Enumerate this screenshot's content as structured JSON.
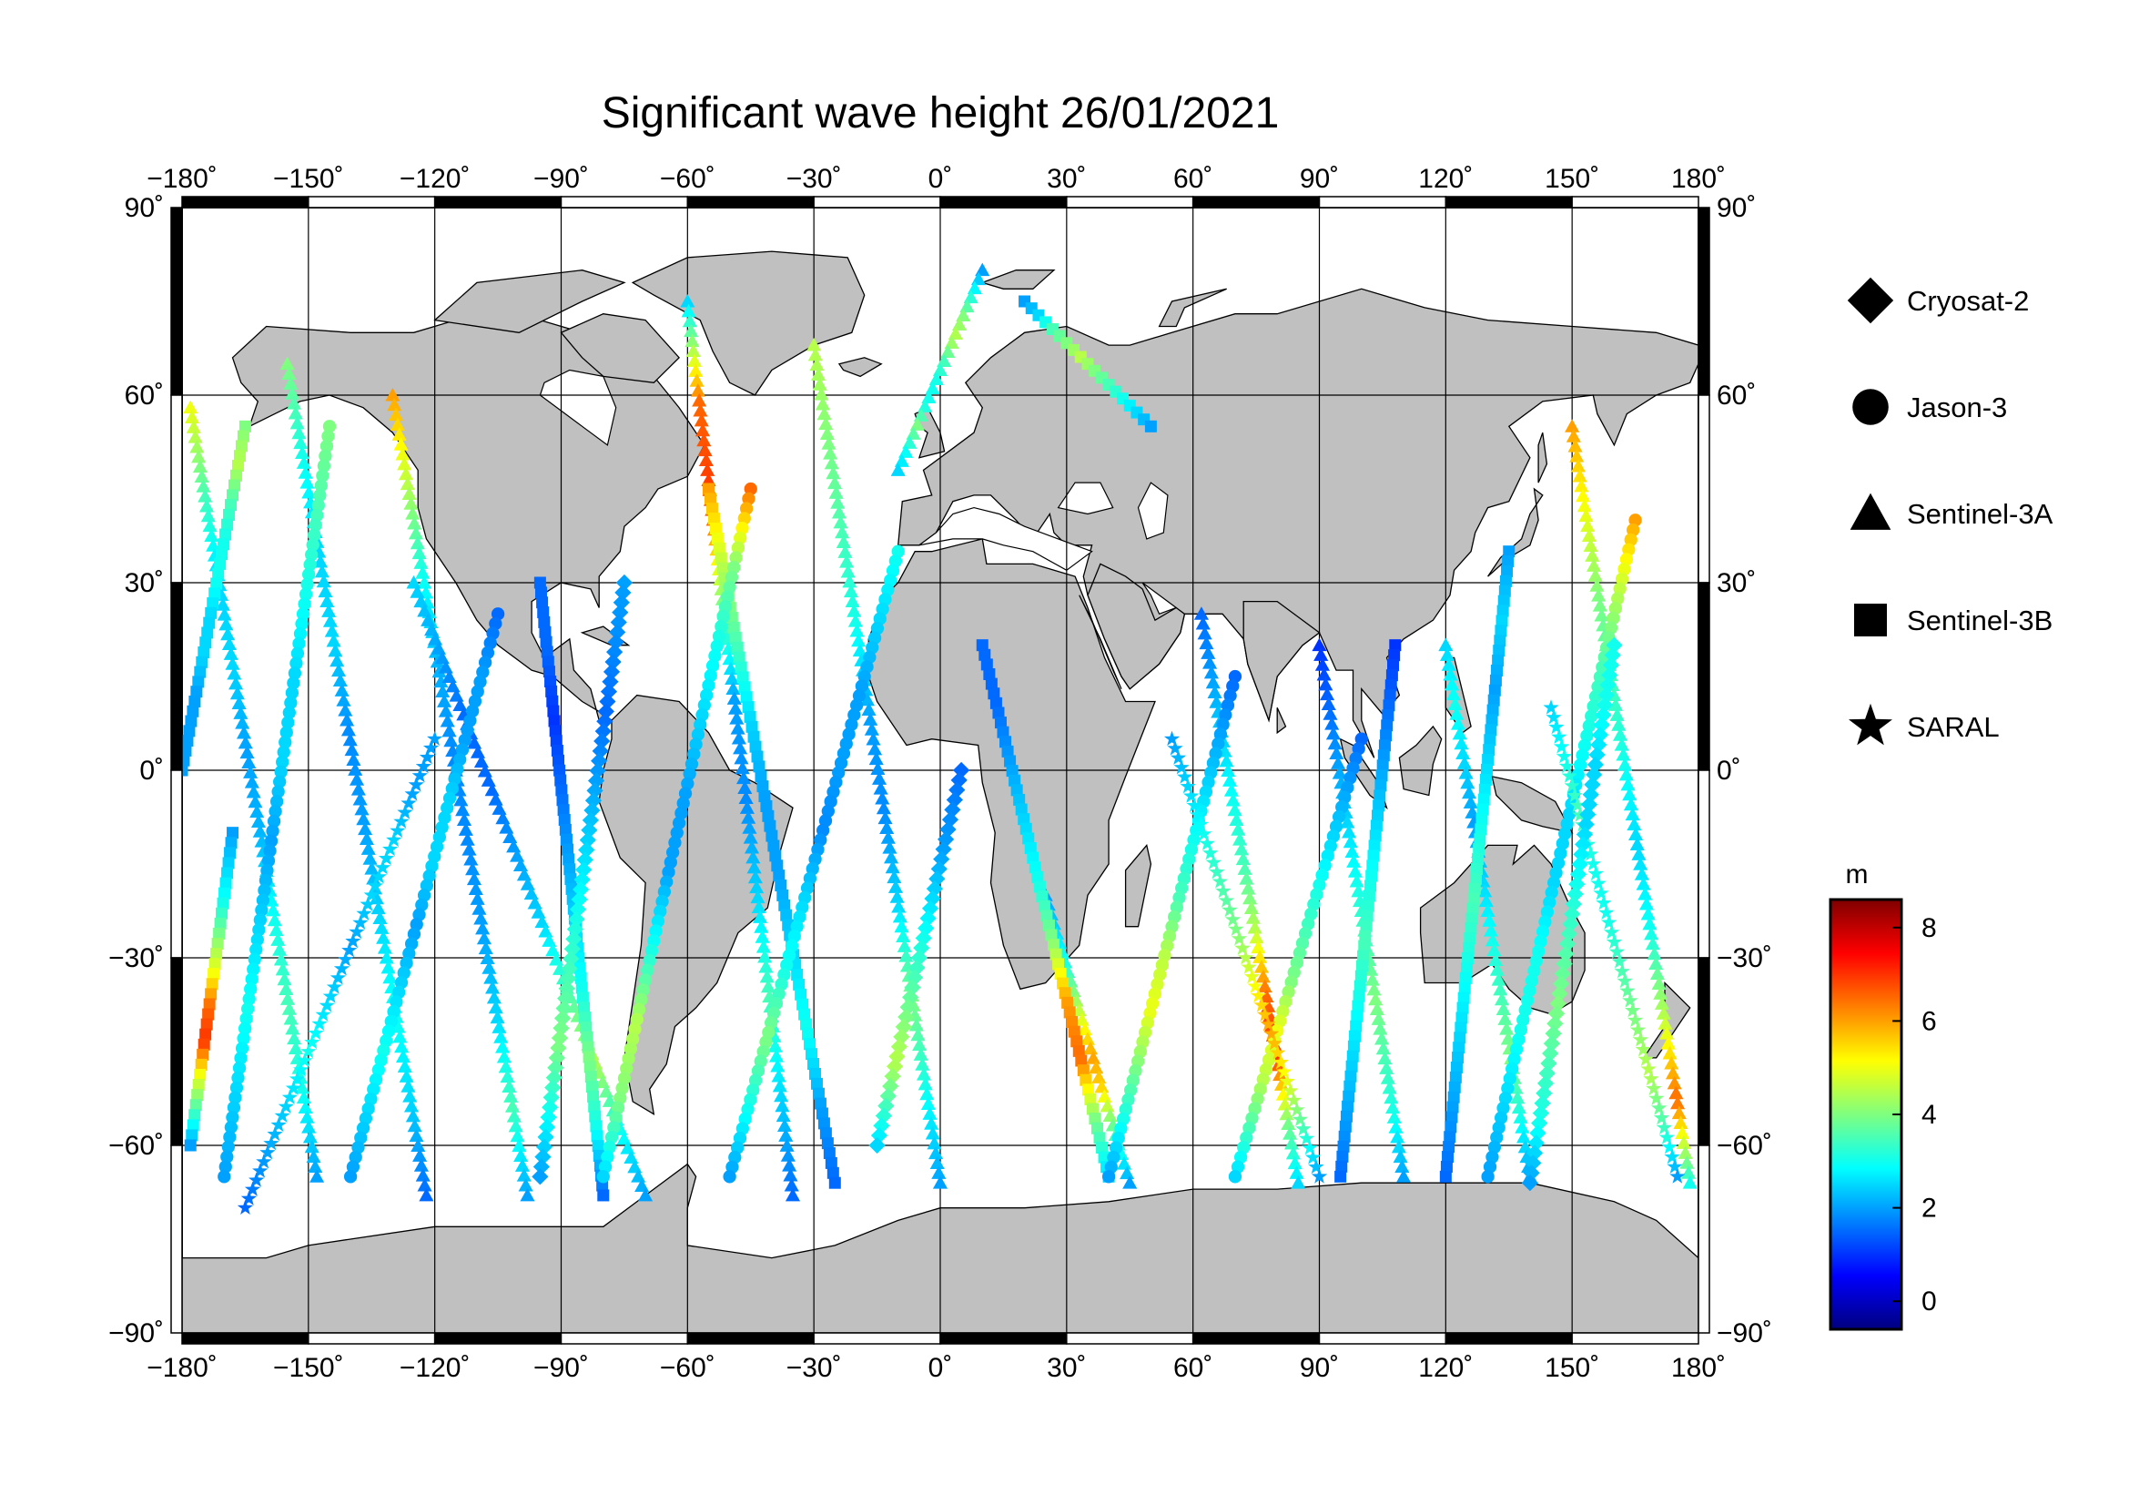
{
  "title": "Significant wave height 26/01/2021",
  "map": {
    "projection": "equirectangular",
    "lon_range": [
      -180,
      180
    ],
    "lat_range": [
      -90,
      90
    ],
    "land_color": "#c0c0c0",
    "ocean_color": "#ffffff",
    "grid": true,
    "lon_ticks": [
      {
        "value": -180,
        "label": "−180˚"
      },
      {
        "value": -150,
        "label": "−150˚"
      },
      {
        "value": -120,
        "label": "−120˚"
      },
      {
        "value": -90,
        "label": "−90˚"
      },
      {
        "value": -60,
        "label": "−60˚"
      },
      {
        "value": -30,
        "label": "−30˚"
      },
      {
        "value": 0,
        "label": "0˚"
      },
      {
        "value": 30,
        "label": "30˚"
      },
      {
        "value": 60,
        "label": "60˚"
      },
      {
        "value": 90,
        "label": "90˚"
      },
      {
        "value": 120,
        "label": "120˚"
      },
      {
        "value": 150,
        "label": "150˚"
      },
      {
        "value": 180,
        "label": "180˚"
      }
    ],
    "lat_ticks": [
      {
        "value": 90,
        "label": "90˚"
      },
      {
        "value": 60,
        "label": "60˚"
      },
      {
        "value": 30,
        "label": "30˚"
      },
      {
        "value": 0,
        "label": "0˚"
      },
      {
        "value": -30,
        "label": "−30˚"
      },
      {
        "value": -60,
        "label": "−60˚"
      },
      {
        "value": -90,
        "label": "−90˚"
      }
    ]
  },
  "legend": {
    "placement": "right",
    "items": [
      {
        "label": "Cryosat-2",
        "symbol": "diamond"
      },
      {
        "label": "Jason-3",
        "symbol": "circle"
      },
      {
        "label": "Sentinel-3A",
        "symbol": "triangle"
      },
      {
        "label": "Sentinel-3B",
        "symbol": "square"
      },
      {
        "label": "SARAL",
        "symbol": "star"
      }
    ]
  },
  "colorbar": {
    "unit": "m",
    "range": [
      -0.6,
      8.6
    ],
    "ticks": [
      {
        "value": 8,
        "label": "8"
      },
      {
        "value": 6,
        "label": "6"
      },
      {
        "value": 4,
        "label": "4"
      },
      {
        "value": 2,
        "label": "2"
      },
      {
        "value": 0,
        "label": "0"
      }
    ],
    "colormap": [
      "#00007f",
      "#0000ff",
      "#007fff",
      "#00ffff",
      "#7fff7f",
      "#ffff00",
      "#ff7f00",
      "#ff0000",
      "#7f0000"
    ]
  },
  "chart_data": {
    "type": "scatter",
    "title": "Significant wave height 26/01/2021",
    "x_range": [
      -180,
      180
    ],
    "y_range": [
      -90,
      90
    ],
    "value_unit": "m",
    "tracks": [
      {
        "sat": "Sentinel-3A",
        "lon0": -178,
        "lat0": 58,
        "lon1": -148,
        "lat1": -65,
        "h": [
          5.0,
          3.5,
          2.5,
          2.5,
          2.0,
          2.2,
          3.0,
          3.5,
          3.0,
          2.0
        ]
      },
      {
        "sat": "Sentinel-3A",
        "lon0": -155,
        "lat0": 65,
        "lon1": -122,
        "lat1": -68,
        "h": [
          4.0,
          3.0,
          2.5,
          2.5,
          1.8,
          2.0,
          2.5,
          3.0,
          2.5,
          1.5
        ]
      },
      {
        "sat": "Sentinel-3A",
        "lon0": -130,
        "lat0": 60,
        "lon1": -98,
        "lat1": -68,
        "h": [
          6.0,
          4.5,
          3.0,
          2.2,
          1.8,
          1.8,
          2.0,
          2.5,
          3.5,
          2.0
        ]
      },
      {
        "sat": "Sentinel-3A",
        "lon0": -125,
        "lat0": 30,
        "lon1": -70,
        "lat1": -68,
        "h": [
          2.5,
          2.0,
          1.5,
          1.5,
          2.0,
          2.5,
          3.5,
          4.5,
          3.0,
          2.0
        ]
      },
      {
        "sat": "Sentinel-3A",
        "lon0": -60,
        "lat0": 75,
        "lon1": -35,
        "lat1": -68,
        "h": [
          2.5,
          6.5,
          7.0,
          4.0,
          2.0,
          1.8,
          2.5,
          3.5,
          2.5,
          1.5
        ]
      },
      {
        "sat": "Sentinel-3A",
        "lon0": -30,
        "lat0": 68,
        "lon1": 0,
        "lat1": -66,
        "h": [
          4.5,
          4.0,
          3.5,
          3.0,
          2.0,
          1.8,
          2.5,
          4.0,
          3.0,
          2.0
        ]
      },
      {
        "sat": "Sentinel-3A",
        "lon0": 10,
        "lat0": 80,
        "lon1": -10,
        "lat1": 48,
        "h": [
          2.0,
          3.0,
          4.0,
          4.5,
          3.5,
          3.0,
          3.0,
          4.0,
          3.0,
          2.5
        ]
      },
      {
        "sat": "Sentinel-3A",
        "lon0": 25,
        "lat0": -20,
        "lon1": 45,
        "lat1": -66,
        "h": [
          2.0,
          2.5,
          3.0,
          4.0,
          5.0,
          6.0,
          5.5,
          4.0,
          3.0,
          2.0
        ]
      },
      {
        "sat": "Sentinel-3A",
        "lon0": 62,
        "lat0": 25,
        "lon1": 85,
        "lat1": -66,
        "h": [
          1.5,
          2.0,
          2.5,
          3.0,
          3.5,
          4.5,
          6.5,
          7.0,
          4.0,
          2.5
        ]
      },
      {
        "sat": "Sentinel-3A",
        "lon0": 90,
        "lat0": 20,
        "lon1": 110,
        "lat1": -65,
        "h": [
          1.0,
          1.5,
          2.0,
          2.5,
          3.0,
          3.5,
          4.0,
          3.5,
          3.0,
          2.0
        ]
      },
      {
        "sat": "Sentinel-3A",
        "lon0": 120,
        "lat0": 20,
        "lon1": 140,
        "lat1": -65,
        "h": [
          2.5,
          3.0,
          2.5,
          2.0,
          2.5,
          3.0,
          3.5,
          4.0,
          3.0,
          2.0
        ]
      },
      {
        "sat": "Sentinel-3A",
        "lon0": 150,
        "lat0": 55,
        "lon1": 178,
        "lat1": -66,
        "h": [
          6.0,
          5.0,
          4.0,
          3.5,
          3.0,
          2.5,
          3.0,
          4.5,
          6.5,
          3.0
        ]
      },
      {
        "sat": "Sentinel-3B",
        "lon0": -168,
        "lat0": -10,
        "lon1": -178,
        "lat1": -60,
        "h": [
          2.0,
          2.5,
          3.0,
          4.0,
          5.0,
          6.5,
          7.0,
          5.0,
          3.5,
          2.0
        ]
      },
      {
        "sat": "Sentinel-3B",
        "lon0": -165,
        "lat0": 55,
        "lon1": -180,
        "lat1": 0,
        "h": [
          4.0,
          4.5,
          3.5,
          3.0,
          3.0,
          2.5,
          2.5,
          2.0,
          2.0,
          2.0
        ]
      },
      {
        "sat": "Sentinel-3B",
        "lon0": -95,
        "lat0": 30,
        "lon1": -80,
        "lat1": -68,
        "h": [
          1.5,
          1.5,
          1.0,
          1.5,
          2.0,
          2.5,
          3.0,
          4.0,
          3.0,
          1.5
        ]
      },
      {
        "sat": "Sentinel-3B",
        "lon0": -55,
        "lat0": 45,
        "lon1": -25,
        "lat1": -66,
        "h": [
          6.0,
          4.5,
          3.5,
          2.5,
          2.0,
          2.0,
          2.5,
          3.0,
          2.0,
          1.5
        ]
      },
      {
        "sat": "Sentinel-3B",
        "lon0": 20,
        "lat0": 75,
        "lon1": 50,
        "lat1": 55,
        "h": [
          2.0,
          2.5,
          3.5,
          4.0,
          4.5,
          4.0,
          3.5,
          3.0,
          2.5,
          2.0
        ]
      },
      {
        "sat": "Sentinel-3B",
        "lon0": 10,
        "lat0": 20,
        "lon1": 40,
        "lat1": -65,
        "h": [
          1.5,
          1.5,
          2.0,
          2.5,
          3.0,
          4.0,
          6.0,
          6.5,
          4.0,
          2.5
        ]
      },
      {
        "sat": "Sentinel-3B",
        "lon0": 108,
        "lat0": 20,
        "lon1": 95,
        "lat1": -65,
        "h": [
          1.0,
          1.5,
          2.0,
          2.5,
          3.0,
          3.5,
          3.0,
          2.5,
          2.0,
          1.5
        ]
      },
      {
        "sat": "Sentinel-3B",
        "lon0": 135,
        "lat0": 35,
        "lon1": 120,
        "lat1": -65,
        "h": [
          2.0,
          2.5,
          2.0,
          2.5,
          3.0,
          3.5,
          3.0,
          2.5,
          2.0,
          1.5
        ]
      },
      {
        "sat": "Jason-3",
        "lon0": -145,
        "lat0": 55,
        "lon1": -170,
        "lat1": -65,
        "h": [
          4.0,
          3.5,
          3.0,
          2.5,
          2.5,
          2.0,
          2.5,
          3.0,
          2.5,
          2.0
        ]
      },
      {
        "sat": "Jason-3",
        "lon0": -105,
        "lat0": 25,
        "lon1": -140,
        "lat1": -65,
        "h": [
          1.5,
          2.0,
          2.0,
          2.5,
          2.5,
          2.0,
          2.5,
          3.0,
          2.5,
          2.0
        ]
      },
      {
        "sat": "Jason-3",
        "lon0": -45,
        "lat0": 45,
        "lon1": -80,
        "lat1": -65,
        "h": [
          6.5,
          4.0,
          3.0,
          2.5,
          2.0,
          2.0,
          3.0,
          4.5,
          4.0,
          2.5
        ]
      },
      {
        "sat": "Jason-3",
        "lon0": -10,
        "lat0": 35,
        "lon1": -50,
        "lat1": -65,
        "h": [
          3.0,
          2.5,
          2.0,
          2.0,
          1.8,
          2.5,
          3.0,
          4.0,
          3.0,
          2.0
        ]
      },
      {
        "sat": "Jason-3",
        "lon0": 70,
        "lat0": 15,
        "lon1": 40,
        "lat1": -65,
        "h": [
          1.5,
          2.0,
          2.5,
          3.0,
          3.5,
          4.5,
          5.0,
          4.0,
          3.0,
          2.0
        ]
      },
      {
        "sat": "Jason-3",
        "lon0": 100,
        "lat0": 5,
        "lon1": 70,
        "lat1": -65,
        "h": [
          1.5,
          2.0,
          2.5,
          3.0,
          3.5,
          4.0,
          5.0,
          4.5,
          3.5,
          2.5
        ]
      },
      {
        "sat": "Jason-3",
        "lon0": 165,
        "lat0": 40,
        "lon1": 130,
        "lat1": -65,
        "h": [
          6.0,
          4.5,
          3.5,
          3.0,
          2.5,
          2.5,
          3.0,
          3.0,
          2.5,
          2.0
        ]
      },
      {
        "sat": "SARAL",
        "lon0": -120,
        "lat0": 5,
        "lon1": -165,
        "lat1": -70,
        "h": [
          2.0,
          2.0,
          2.5,
          2.5,
          2.0,
          2.5,
          3.0,
          2.5,
          2.0,
          1.5
        ]
      },
      {
        "sat": "SARAL",
        "lon0": 55,
        "lat0": 5,
        "lon1": 90,
        "lat1": -65,
        "h": [
          2.0,
          2.5,
          3.0,
          3.5,
          4.0,
          5.0,
          6.0,
          5.0,
          3.5,
          2.0
        ]
      },
      {
        "sat": "SARAL",
        "lon0": 145,
        "lat0": 10,
        "lon1": 175,
        "lat1": -65,
        "h": [
          2.5,
          3.0,
          3.5,
          3.0,
          3.0,
          3.5,
          4.0,
          4.5,
          3.5,
          2.0
        ]
      },
      {
        "sat": "Cryosat-2",
        "lon0": -75,
        "lat0": 30,
        "lon1": -95,
        "lat1": -65,
        "h": [
          2.0,
          1.8,
          1.5,
          2.0,
          2.5,
          3.0,
          3.5,
          4.0,
          3.0,
          2.0
        ]
      },
      {
        "sat": "Cryosat-2",
        "lon0": 5,
        "lat0": 0,
        "lon1": -15,
        "lat1": -60,
        "h": [
          1.5,
          1.8,
          2.0,
          2.5,
          3.0,
          3.5,
          4.0,
          4.5,
          3.5,
          2.5
        ]
      },
      {
        "sat": "Cryosat-2",
        "lon0": 160,
        "lat0": 20,
        "lon1": 140,
        "lat1": -66,
        "h": [
          3.0,
          3.0,
          2.5,
          2.5,
          3.0,
          3.5,
          4.0,
          3.5,
          3.0,
          2.0
        ]
      }
    ]
  }
}
